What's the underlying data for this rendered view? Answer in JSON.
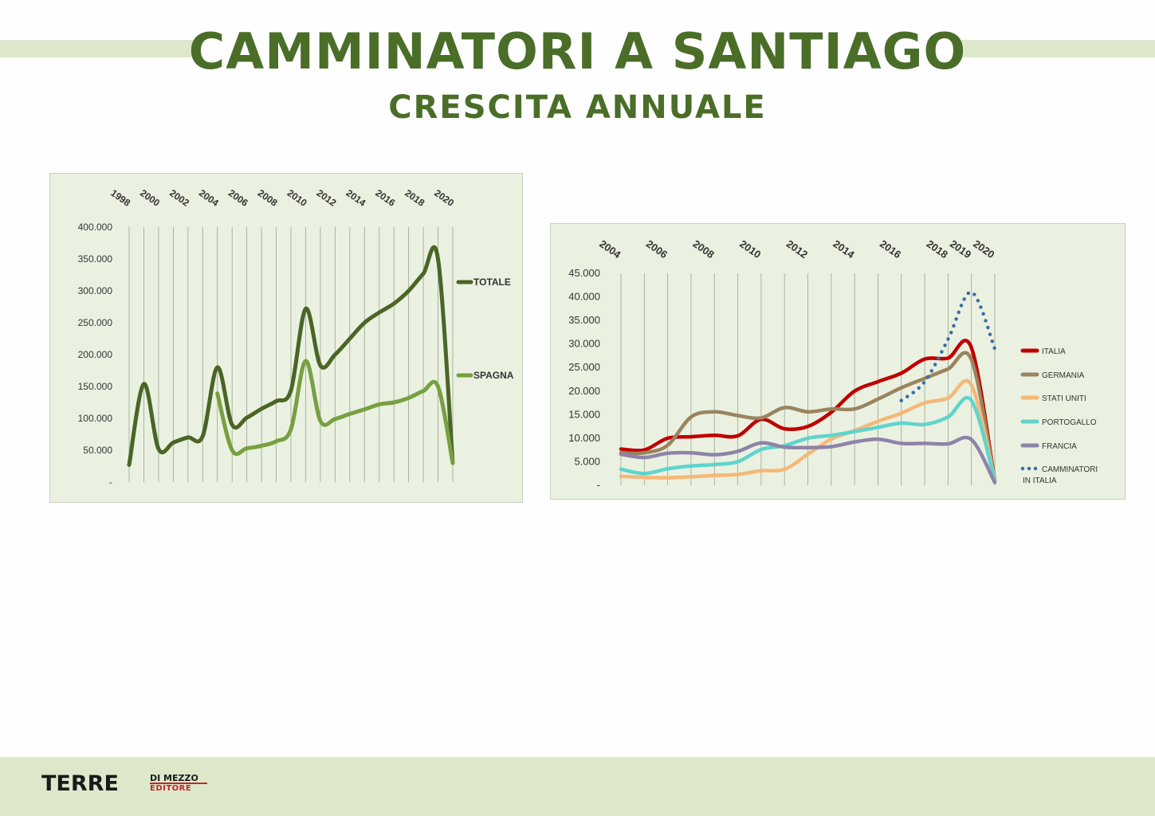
{
  "title": "CAMMINATORI A SANTIAGO",
  "subtitle": "CRESCITA ANNUALE",
  "footer": {
    "logo_main": "TERRE",
    "logo_sub1": "DI MEZZO",
    "logo_sub2": "EDITORE"
  },
  "chart_data": [
    {
      "type": "line",
      "x_tick_labels": [
        "1998",
        "2000",
        "2002",
        "2004",
        "2006",
        "2008",
        "2010",
        "2012",
        "2014",
        "2016",
        "2018",
        "2020"
      ],
      "y_tick_labels": [
        "400.000",
        "350.000",
        "300.000",
        "250.000",
        "200.000",
        "150.000",
        "100.000",
        "50.000",
        "-"
      ],
      "xlim": [
        1998,
        2020
      ],
      "ylim": [
        0,
        400000
      ],
      "grid": "vertical",
      "legend_position": "right",
      "series": [
        {
          "name": "TOTALE",
          "color": "#4a6526",
          "x": [
            1998,
            1999,
            2000,
            2001,
            2002,
            2003,
            2004,
            2005,
            2006,
            2007,
            2008,
            2009,
            2010,
            2011,
            2012,
            2013,
            2014,
            2015,
            2016,
            2017,
            2018,
            2019,
            2020
          ],
          "y": [
            27000,
            154000,
            52000,
            62000,
            70000,
            72000,
            180000,
            90000,
            101000,
            115000,
            127000,
            144000,
            272000,
            183000,
            200000,
            225000,
            250000,
            266000,
            280000,
            300000,
            327000,
            350000,
            30000
          ]
        },
        {
          "name": "SPAGNA",
          "color": "#77a040",
          "x": [
            2004,
            2005,
            2006,
            2007,
            2008,
            2009,
            2010,
            2011,
            2012,
            2013,
            2014,
            2015,
            2016,
            2017,
            2018,
            2019,
            2020
          ],
          "y": [
            139000,
            50000,
            53000,
            57000,
            64000,
            83000,
            190000,
            96000,
            99000,
            107000,
            114000,
            122000,
            125000,
            132000,
            143000,
            150000,
            30000
          ]
        }
      ]
    },
    {
      "type": "line",
      "x_tick_labels": [
        "2004",
        "2006",
        "2008",
        "2010",
        "2012",
        "2014",
        "2016",
        "2018",
        "2019",
        "2020"
      ],
      "y_tick_labels": [
        "45.000",
        "40.000",
        "35.000",
        "30.000",
        "25.000",
        "20.000",
        "15.000",
        "10.000",
        "5.000",
        "-"
      ],
      "xlim": [
        2004,
        2020
      ],
      "ylim": [
        0,
        45000
      ],
      "grid": "vertical",
      "legend_position": "right",
      "series": [
        {
          "name": "ITALIA",
          "color": "#c00000",
          "style": "solid",
          "x": [
            2004,
            2005,
            2006,
            2007,
            2008,
            2009,
            2010,
            2011,
            2012,
            2013,
            2014,
            2015,
            2016,
            2017,
            2018,
            2019,
            2020
          ],
          "y": [
            7700,
            7500,
            10000,
            10300,
            10600,
            10500,
            14000,
            12000,
            12500,
            15500,
            20000,
            22000,
            23800,
            26800,
            27000,
            29200,
            1000
          ]
        },
        {
          "name": "GERMANIA",
          "color": "#9a845e",
          "style": "solid",
          "x": [
            2004,
            2005,
            2006,
            2007,
            2008,
            2009,
            2010,
            2011,
            2012,
            2013,
            2014,
            2015,
            2016,
            2017,
            2018,
            2019,
            2020
          ],
          "y": [
            6900,
            6900,
            8500,
            14500,
            15600,
            14800,
            14300,
            16500,
            15600,
            16200,
            16200,
            18300,
            20700,
            22700,
            24700,
            26700,
            1000
          ]
        },
        {
          "name": "STATI UNITI",
          "color": "#f5b878",
          "style": "solid",
          "x": [
            2004,
            2005,
            2006,
            2007,
            2008,
            2009,
            2010,
            2011,
            2012,
            2013,
            2014,
            2015,
            2016,
            2017,
            2018,
            2019,
            2020
          ],
          "y": [
            1900,
            1700,
            1600,
            1800,
            2100,
            2300,
            3100,
            3400,
            6600,
            9800,
            11600,
            13600,
            15300,
            17500,
            18500,
            21300,
            1000
          ]
        },
        {
          "name": "PORTOGALLO",
          "color": "#5fd4cc",
          "style": "solid",
          "x": [
            2004,
            2005,
            2006,
            2007,
            2008,
            2009,
            2010,
            2011,
            2012,
            2013,
            2014,
            2015,
            2016,
            2017,
            2018,
            2019,
            2020
          ],
          "y": [
            3400,
            2500,
            3500,
            4100,
            4400,
            5000,
            7600,
            8400,
            10000,
            10600,
            11400,
            12300,
            13200,
            12900,
            14500,
            18000,
            1000
          ]
        },
        {
          "name": "FRANCIA",
          "color": "#8e83a8",
          "style": "solid",
          "x": [
            2004,
            2005,
            2006,
            2007,
            2008,
            2009,
            2010,
            2011,
            2012,
            2013,
            2014,
            2015,
            2016,
            2017,
            2018,
            2019,
            2020
          ],
          "y": [
            6600,
            5900,
            6800,
            6900,
            6500,
            7200,
            9000,
            8100,
            8000,
            8200,
            9200,
            9800,
            8900,
            8900,
            8800,
            9700,
            600
          ]
        },
        {
          "name": "CAMMINATORI IN ITALIA",
          "color": "#3a6ea5",
          "style": "dotted",
          "x": [
            2016,
            2017,
            2018,
            2019,
            2020
          ],
          "y": [
            18000,
            22000,
            31000,
            41000,
            29000
          ]
        }
      ]
    }
  ]
}
